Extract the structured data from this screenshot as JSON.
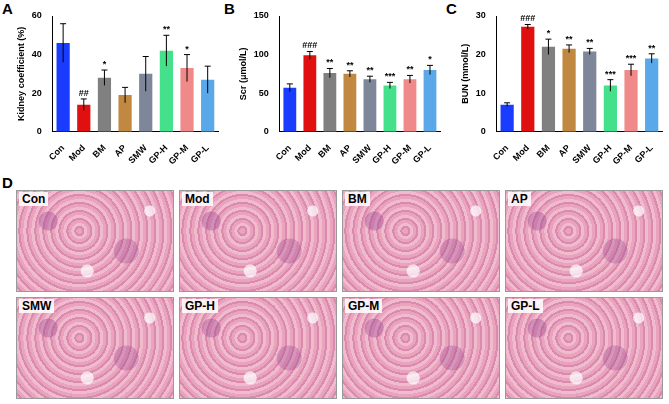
{
  "chart_data": [
    {
      "label": "A",
      "type": "bar",
      "categories": [
        "Con",
        "Mod",
        "BM",
        "AP",
        "SMW",
        "GP-H",
        "GP-M",
        "GP-L"
      ],
      "values": [
        46,
        14,
        28,
        19,
        30,
        42,
        33,
        27
      ],
      "errors": [
        10,
        3,
        4,
        4,
        9,
        8,
        7,
        7
      ],
      "significance": [
        null,
        "##",
        "*",
        null,
        null,
        "**",
        "*",
        null
      ],
      "colors": [
        "#1a3cff",
        "#e01010",
        "#808080",
        "#c08840",
        "#7d8799",
        "#45e08a",
        "#f08a8a",
        "#5aa8e8"
      ],
      "y_label": "Kidney coefficient (%)",
      "ylim": [
        0,
        60
      ],
      "yticks": [
        0,
        20,
        40,
        60
      ],
      "grid": false
    },
    {
      "label": "B",
      "type": "bar",
      "categories": [
        "Con",
        "Mod",
        "BM",
        "AP",
        "SMW",
        "GP-H",
        "GP-M",
        "GP-L"
      ],
      "values": [
        57,
        99,
        76,
        75,
        68,
        60,
        68,
        80
      ],
      "errors": [
        5,
        5,
        6,
        4,
        4,
        4,
        5,
        6
      ],
      "significance": [
        null,
        "###",
        "**",
        "**",
        "**",
        "***",
        "**",
        "*"
      ],
      "colors": [
        "#1a3cff",
        "#e01010",
        "#808080",
        "#c08840",
        "#7d8799",
        "#45e08a",
        "#f08a8a",
        "#5aa8e8"
      ],
      "y_label": "Scr (μmol/L)",
      "ylim": [
        0,
        150
      ],
      "yticks": [
        0,
        50,
        100,
        150
      ],
      "grid": false
    },
    {
      "label": "C",
      "type": "bar",
      "categories": [
        "Con",
        "Mod",
        "BM",
        "AP",
        "SMW",
        "GP-H",
        "GP-M",
        "GP-L"
      ],
      "values": [
        7,
        27.2,
        22,
        21.5,
        20.8,
        12,
        16,
        19
      ],
      "errors": [
        0.5,
        0.6,
        2,
        1,
        0.8,
        1.5,
        1.5,
        1.2
      ],
      "significance": [
        null,
        "###",
        "*",
        "**",
        "**",
        "***",
        "***",
        "**"
      ],
      "colors": [
        "#1a3cff",
        "#e01010",
        "#808080",
        "#c08840",
        "#7d8799",
        "#45e08a",
        "#f08a8a",
        "#5aa8e8"
      ],
      "y_label": "BUN (mmol/L)",
      "ylim": [
        0,
        30
      ],
      "yticks": [
        0,
        10,
        20,
        30
      ],
      "grid": false
    }
  ],
  "histology": {
    "label": "D",
    "panels": [
      "Con",
      "Mod",
      "BM",
      "AP",
      "SMW",
      "GP-H",
      "GP-M",
      "GP-L"
    ]
  }
}
